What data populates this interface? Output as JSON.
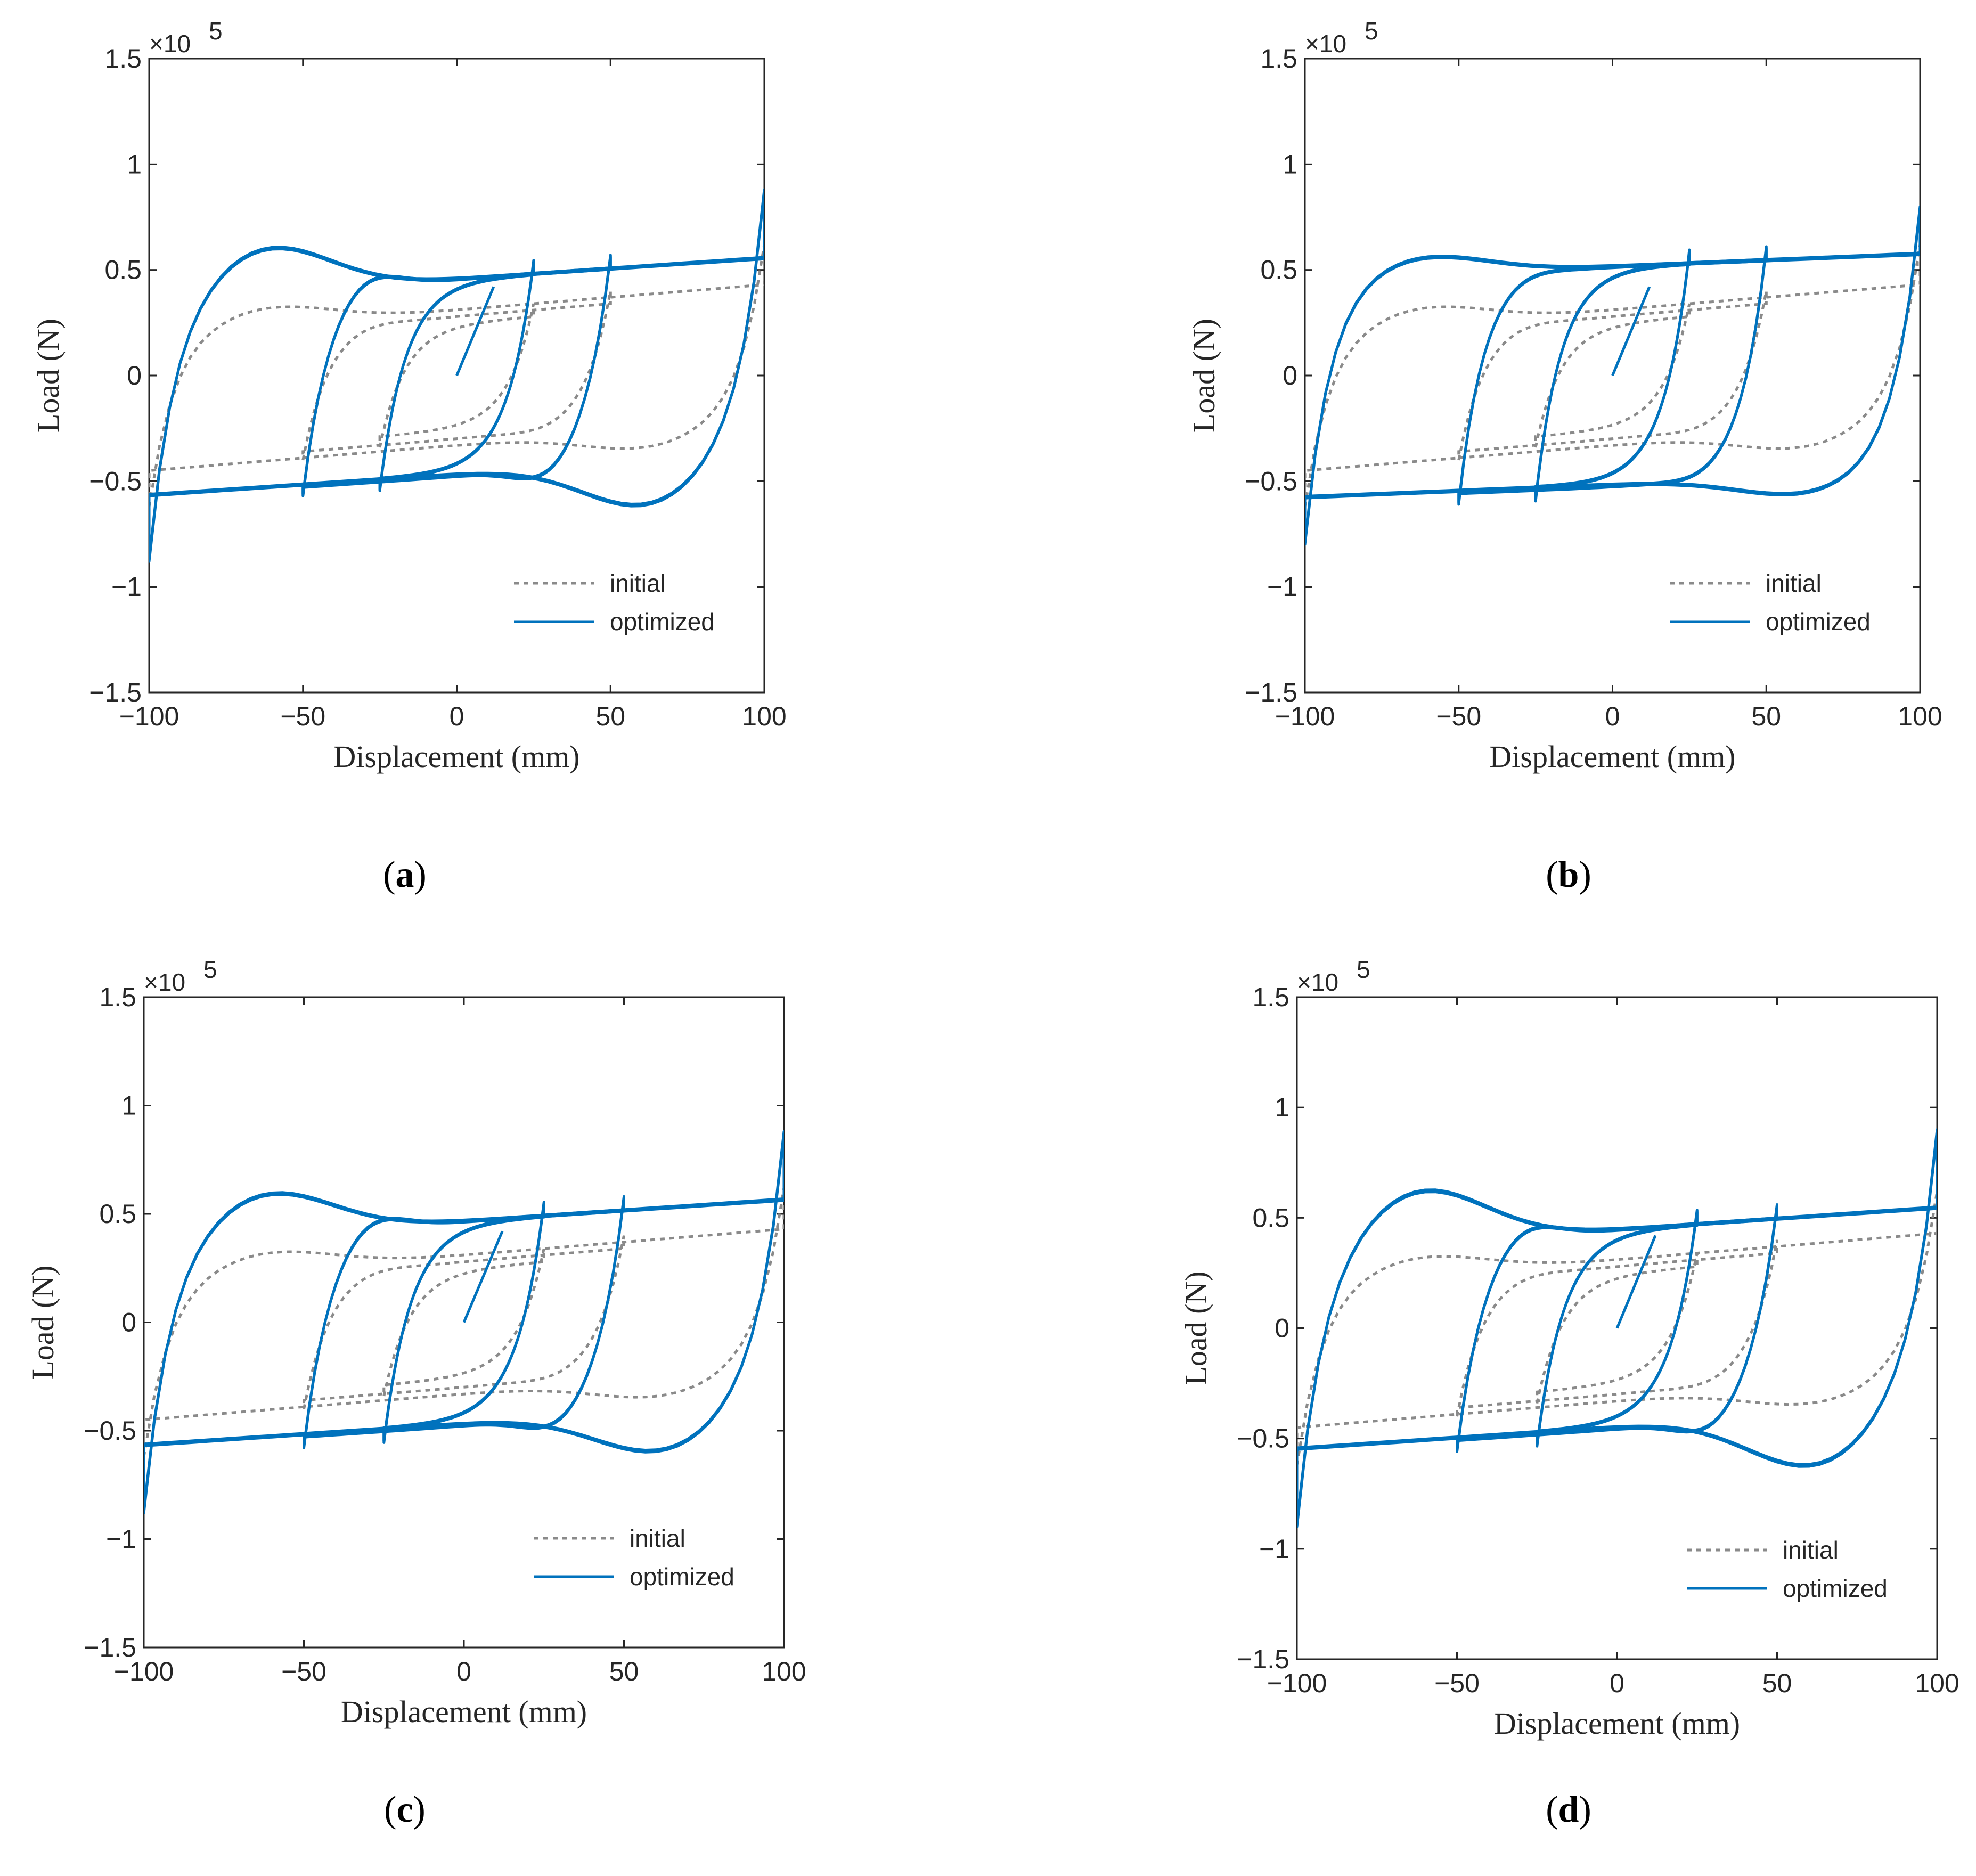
{
  "chart_data": [
    {
      "panel": "a",
      "type": "line",
      "caption": "a",
      "xlabel": "Displacement (mm)",
      "ylabel": "Load (N)",
      "y_multiplier": "×10",
      "y_multiplier_exponent": "5",
      "xlim": [
        -100,
        100
      ],
      "ylim": [
        -1.5,
        1.5
      ],
      "xticks": [
        -100,
        -50,
        0,
        50,
        100
      ],
      "xtick_labels": [
        "−100",
        "−50",
        "0",
        "50",
        "100"
      ],
      "yticks": [
        -1.5,
        -1,
        -0.5,
        0,
        0.5,
        1,
        1.5
      ],
      "ytick_labels": [
        "−1.5",
        "−1",
        "−0.5",
        "0",
        "0.5",
        "1",
        "1.5"
      ],
      "legend": [
        "initial",
        "optimized"
      ],
      "legend_location": "bottom-right",
      "series": [
        {
          "name": "initial",
          "style": "dotted-gray",
          "loops": [
            {
              "amp": 25,
              "top": 0.25,
              "bot": -0.26,
              "hump": 0.0,
              "k": 0.4,
              "tilt": 0.12
            },
            {
              "amp": 50,
              "top": 0.28,
              "bot": -0.3,
              "hump": 0.02,
              "k": 0.4,
              "tilt": 0.12
            },
            {
              "amp": 100,
              "top": 0.31,
              "bot": -0.33,
              "hump": 0.09,
              "k": 0.4,
              "tilt": 0.12,
              "tip": 0.62
            }
          ]
        },
        {
          "name": "optimized",
          "style": "solid-blue",
          "loops": [
            {
              "amp": 25,
              "top": 0.46,
              "bot": -0.47,
              "hump": 0.0,
              "k": 0.43,
              "tilt": 0.1
            },
            {
              "amp": 50,
              "top": 0.46,
              "bot": -0.48,
              "hump": 0.1,
              "k": 0.43,
              "tilt": 0.1
            },
            {
              "amp": 100,
              "top": 0.46,
              "bot": -0.47,
              "hump": 0.22,
              "k": 0.43,
              "tilt": 0.1,
              "tip": 0.88
            }
          ]
        }
      ]
    },
    {
      "panel": "b",
      "type": "line",
      "caption": "b",
      "xlabel": "Displacement (mm)",
      "ylabel": "Load (N)",
      "y_multiplier": "×10",
      "y_multiplier_exponent": "5",
      "xlim": [
        -100,
        100
      ],
      "ylim": [
        -1.5,
        1.5
      ],
      "xticks": [
        -100,
        -50,
        0,
        50,
        100
      ],
      "xtick_labels": [
        "−100",
        "−50",
        "0",
        "50",
        "100"
      ],
      "yticks": [
        -1.5,
        -1,
        -0.5,
        0,
        0.5,
        1,
        1.5
      ],
      "ytick_labels": [
        "−1.5",
        "−1",
        "−0.5",
        "0",
        "0.5",
        "1",
        "1.5"
      ],
      "legend": [
        "initial",
        "optimized"
      ],
      "legend_location": "bottom-right",
      "series": [
        {
          "name": "initial",
          "style": "dotted-gray",
          "loops": [
            {
              "amp": 25,
              "top": 0.25,
              "bot": -0.26,
              "hump": 0.0,
              "k": 0.4,
              "tilt": 0.12
            },
            {
              "amp": 50,
              "top": 0.28,
              "bot": -0.3,
              "hump": 0.02,
              "k": 0.4,
              "tilt": 0.12
            },
            {
              "amp": 100,
              "top": 0.31,
              "bot": -0.33,
              "hump": 0.09,
              "k": 0.4,
              "tilt": 0.12,
              "tip": 0.62
            }
          ]
        },
        {
          "name": "optimized",
          "style": "solid-blue",
          "loops": [
            {
              "amp": 25,
              "top": 0.52,
              "bot": -0.52,
              "hump": 0.0,
              "k": 0.43,
              "tilt": 0.06
            },
            {
              "amp": 50,
              "top": 0.52,
              "bot": -0.53,
              "hump": 0.03,
              "k": 0.43,
              "tilt": 0.06
            },
            {
              "amp": 100,
              "top": 0.52,
              "bot": -0.52,
              "hump": 0.09,
              "k": 0.43,
              "tilt": 0.06,
              "tip": 0.8
            }
          ]
        }
      ]
    },
    {
      "panel": "c",
      "type": "line",
      "caption": "c",
      "xlabel": "Displacement (mm)",
      "ylabel": "Load (N)",
      "y_multiplier": "×10",
      "y_multiplier_exponent": "5",
      "xlim": [
        -100,
        100
      ],
      "ylim": [
        -1.5,
        1.5
      ],
      "xticks": [
        -100,
        -50,
        0,
        50,
        100
      ],
      "xtick_labels": [
        "−100",
        "−50",
        "0",
        "50",
        "100"
      ],
      "yticks": [
        -1.5,
        -1,
        -0.5,
        0,
        0.5,
        1,
        1.5
      ],
      "ytick_labels": [
        "−1.5",
        "−1",
        "−0.5",
        "0",
        "0.5",
        "1",
        "1.5"
      ],
      "legend": [
        "initial",
        "optimized"
      ],
      "legend_location": "bottom-right",
      "series": [
        {
          "name": "initial",
          "style": "dotted-gray",
          "loops": [
            {
              "amp": 25,
              "top": 0.25,
              "bot": -0.26,
              "hump": 0.0,
              "k": 0.4,
              "tilt": 0.12
            },
            {
              "amp": 50,
              "top": 0.28,
              "bot": -0.3,
              "hump": 0.02,
              "k": 0.4,
              "tilt": 0.12
            },
            {
              "amp": 100,
              "top": 0.31,
              "bot": -0.33,
              "hump": 0.09,
              "k": 0.4,
              "tilt": 0.12,
              "tip": 0.62
            }
          ]
        },
        {
          "name": "optimized",
          "style": "solid-blue",
          "loops": [
            {
              "amp": 25,
              "top": 0.47,
              "bot": -0.47,
              "hump": 0.0,
              "k": 0.43,
              "tilt": 0.1
            },
            {
              "amp": 50,
              "top": 0.47,
              "bot": -0.48,
              "hump": 0.1,
              "k": 0.43,
              "tilt": 0.1
            },
            {
              "amp": 100,
              "top": 0.47,
              "bot": -0.47,
              "hump": 0.2,
              "k": 0.43,
              "tilt": 0.1,
              "tip": 0.88
            }
          ]
        }
      ]
    },
    {
      "panel": "d",
      "type": "line",
      "caption": "d",
      "xlabel": "Displacement (mm)",
      "ylabel": "Load (N)",
      "y_multiplier": "×10",
      "y_multiplier_exponent": "5",
      "xlim": [
        -100,
        100
      ],
      "ylim": [
        -1.5,
        1.5
      ],
      "xticks": [
        -100,
        -50,
        0,
        50,
        100
      ],
      "xtick_labels": [
        "−100",
        "−50",
        "0",
        "50",
        "100"
      ],
      "yticks": [
        -1.5,
        -1,
        -0.5,
        0,
        0.5,
        1,
        1.5
      ],
      "ytick_labels": [
        "−1.5",
        "−1",
        "−0.5",
        "0",
        "0.5",
        "1",
        "1.5"
      ],
      "legend": [
        "initial",
        "optimized"
      ],
      "legend_location": "bottom-right",
      "series": [
        {
          "name": "initial",
          "style": "dotted-gray",
          "loops": [
            {
              "amp": 25,
              "top": 0.25,
              "bot": -0.26,
              "hump": 0.0,
              "k": 0.4,
              "tilt": 0.12
            },
            {
              "amp": 50,
              "top": 0.28,
              "bot": -0.3,
              "hump": 0.02,
              "k": 0.4,
              "tilt": 0.12
            },
            {
              "amp": 100,
              "top": 0.31,
              "bot": -0.33,
              "hump": 0.09,
              "k": 0.4,
              "tilt": 0.12,
              "tip": 0.62
            }
          ]
        },
        {
          "name": "optimized",
          "style": "solid-blue",
          "loops": [
            {
              "amp": 25,
              "top": 0.45,
              "bot": -0.45,
              "hump": 0.0,
              "k": 0.43,
              "tilt": 0.1
            },
            {
              "amp": 50,
              "top": 0.45,
              "bot": -0.46,
              "hump": 0.1,
              "k": 0.43,
              "tilt": 0.1
            },
            {
              "amp": 100,
              "top": 0.45,
              "bot": -0.45,
              "hump": 0.25,
              "k": 0.43,
              "tilt": 0.1,
              "tip": 0.9
            }
          ]
        }
      ]
    }
  ],
  "colors": {
    "optimized": "#0072bd",
    "initial": "#8a8a8a",
    "axes": "#262626"
  }
}
